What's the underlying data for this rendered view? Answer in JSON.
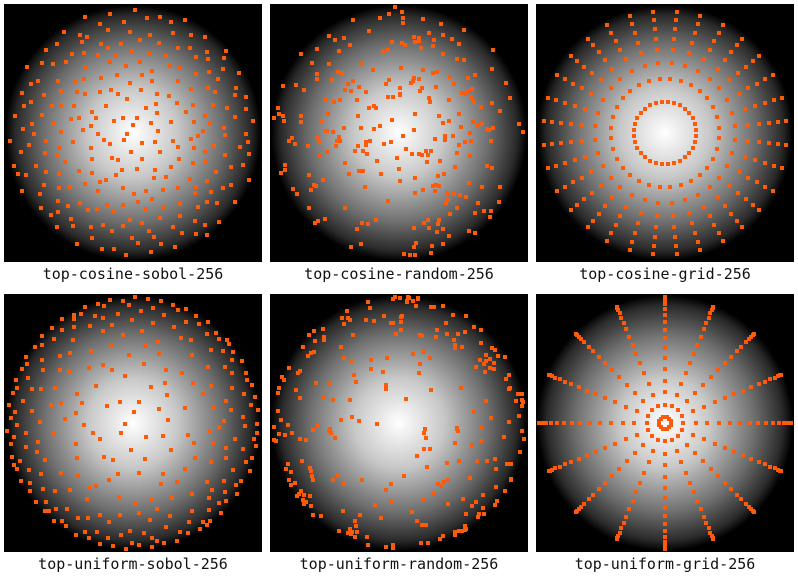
{
  "colors": {
    "background": "#000000",
    "sample": "#ff5a0a",
    "glow_center": "#ffffff"
  },
  "panels": [
    {
      "label": "top-cosine-sobol-256",
      "distribution": "cosine",
      "sampler": "sobol",
      "count": 256
    },
    {
      "label": "top-cosine-random-256",
      "distribution": "cosine",
      "sampler": "random",
      "count": 256
    },
    {
      "label": "top-cosine-grid-256",
      "distribution": "cosine",
      "sampler": "grid",
      "count": 256
    },
    {
      "label": "top-uniform-sobol-256",
      "distribution": "uniform",
      "sampler": "sobol",
      "count": 256
    },
    {
      "label": "top-uniform-random-256",
      "distribution": "uniform",
      "sampler": "random",
      "count": 256
    },
    {
      "label": "top-uniform-grid-256",
      "distribution": "uniform",
      "sampler": "grid",
      "count": 256
    }
  ]
}
